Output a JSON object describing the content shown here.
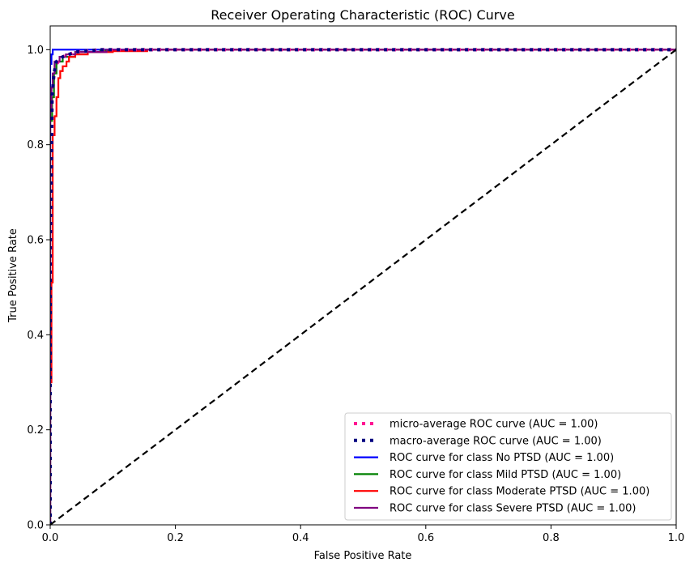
{
  "chart_data": {
    "type": "line",
    "title": "Receiver Operating Characteristic (ROC) Curve",
    "xlabel": "False Positive Rate",
    "ylabel": "True Positive Rate",
    "xlim": [
      0.0,
      1.0
    ],
    "ylim": [
      0.0,
      1.05
    ],
    "xticks": [
      "0.0",
      "0.2",
      "0.4",
      "0.6",
      "0.8",
      "1.0"
    ],
    "yticks": [
      "0.0",
      "0.2",
      "0.4",
      "0.6",
      "0.8",
      "1.0"
    ],
    "grid": false,
    "legend_position": "lower-right",
    "series": [
      {
        "name": "micro-average ROC curve (AUC = 1.00)",
        "color": "#ff1493",
        "style": "dotted",
        "points": [
          [
            0.0,
            0.0
          ],
          [
            0.0,
            0.5
          ],
          [
            0.003,
            0.9
          ],
          [
            0.006,
            0.95
          ],
          [
            0.01,
            0.97
          ],
          [
            0.02,
            0.985
          ],
          [
            0.04,
            0.995
          ],
          [
            0.08,
            1.0
          ],
          [
            1.0,
            1.0
          ]
        ]
      },
      {
        "name": "macro-average ROC curve (AUC = 1.00)",
        "color": "#000080",
        "style": "dotted",
        "points": [
          [
            0.0,
            0.0
          ],
          [
            0.0,
            0.55
          ],
          [
            0.003,
            0.9
          ],
          [
            0.006,
            0.95
          ],
          [
            0.01,
            0.975
          ],
          [
            0.02,
            0.985
          ],
          [
            0.04,
            0.995
          ],
          [
            0.08,
            1.0
          ],
          [
            1.0,
            1.0
          ]
        ]
      },
      {
        "name": "ROC curve for class No PTSD (AUC = 1.00)",
        "color": "#0000ff",
        "style": "solid",
        "points": [
          [
            0.0,
            0.0
          ],
          [
            0.0,
            0.97
          ],
          [
            0.002,
            0.97
          ],
          [
            0.002,
            0.99
          ],
          [
            0.004,
            0.99
          ],
          [
            0.004,
            1.0
          ],
          [
            1.0,
            1.0
          ]
        ]
      },
      {
        "name": "ROC curve for class Mild PTSD (AUC = 1.00)",
        "color": "#008000",
        "style": "solid",
        "points": [
          [
            0.0,
            0.0
          ],
          [
            0.0,
            0.85
          ],
          [
            0.003,
            0.85
          ],
          [
            0.003,
            0.9
          ],
          [
            0.006,
            0.9
          ],
          [
            0.006,
            0.95
          ],
          [
            0.01,
            0.95
          ],
          [
            0.01,
            0.975
          ],
          [
            0.02,
            0.975
          ],
          [
            0.02,
            0.985
          ],
          [
            0.04,
            0.985
          ],
          [
            0.04,
            0.995
          ],
          [
            0.08,
            0.995
          ],
          [
            0.08,
            0.998
          ],
          [
            0.12,
            0.998
          ],
          [
            0.12,
            1.0
          ],
          [
            1.0,
            1.0
          ]
        ]
      },
      {
        "name": "ROC curve for class Moderate PTSD (AUC = 1.00)",
        "color": "#ff0000",
        "style": "solid",
        "points": [
          [
            0.0,
            0.0
          ],
          [
            0.0,
            0.3
          ],
          [
            0.002,
            0.3
          ],
          [
            0.002,
            0.51
          ],
          [
            0.004,
            0.51
          ],
          [
            0.004,
            0.82
          ],
          [
            0.007,
            0.82
          ],
          [
            0.007,
            0.86
          ],
          [
            0.01,
            0.86
          ],
          [
            0.01,
            0.9
          ],
          [
            0.013,
            0.9
          ],
          [
            0.013,
            0.94
          ],
          [
            0.016,
            0.94
          ],
          [
            0.016,
            0.955
          ],
          [
            0.02,
            0.955
          ],
          [
            0.02,
            0.965
          ],
          [
            0.026,
            0.965
          ],
          [
            0.026,
            0.975
          ],
          [
            0.03,
            0.975
          ],
          [
            0.03,
            0.985
          ],
          [
            0.04,
            0.985
          ],
          [
            0.04,
            0.99
          ],
          [
            0.06,
            0.99
          ],
          [
            0.06,
            0.995
          ],
          [
            0.1,
            0.995
          ],
          [
            0.1,
            0.997
          ],
          [
            0.155,
            0.997
          ],
          [
            0.155,
            1.0
          ],
          [
            1.0,
            1.0
          ]
        ]
      },
      {
        "name": "ROC curve for class Severe PTSD (AUC = 1.00)",
        "color": "#800080",
        "style": "solid",
        "points": [
          [
            0.0,
            0.0
          ],
          [
            0.0,
            0.87
          ],
          [
            0.002,
            0.87
          ],
          [
            0.002,
            0.92
          ],
          [
            0.004,
            0.92
          ],
          [
            0.004,
            0.95
          ],
          [
            0.007,
            0.95
          ],
          [
            0.007,
            0.975
          ],
          [
            0.015,
            0.975
          ],
          [
            0.015,
            0.985
          ],
          [
            0.025,
            0.985
          ],
          [
            0.025,
            0.99
          ],
          [
            0.04,
            0.99
          ],
          [
            0.04,
            0.995
          ],
          [
            0.09,
            0.995
          ],
          [
            0.09,
            1.0
          ],
          [
            1.0,
            1.0
          ]
        ]
      },
      {
        "name": "",
        "color": "#000000",
        "style": "dashed",
        "points": [
          [
            0.0,
            0.0
          ],
          [
            1.0,
            1.0
          ]
        ]
      }
    ]
  }
}
